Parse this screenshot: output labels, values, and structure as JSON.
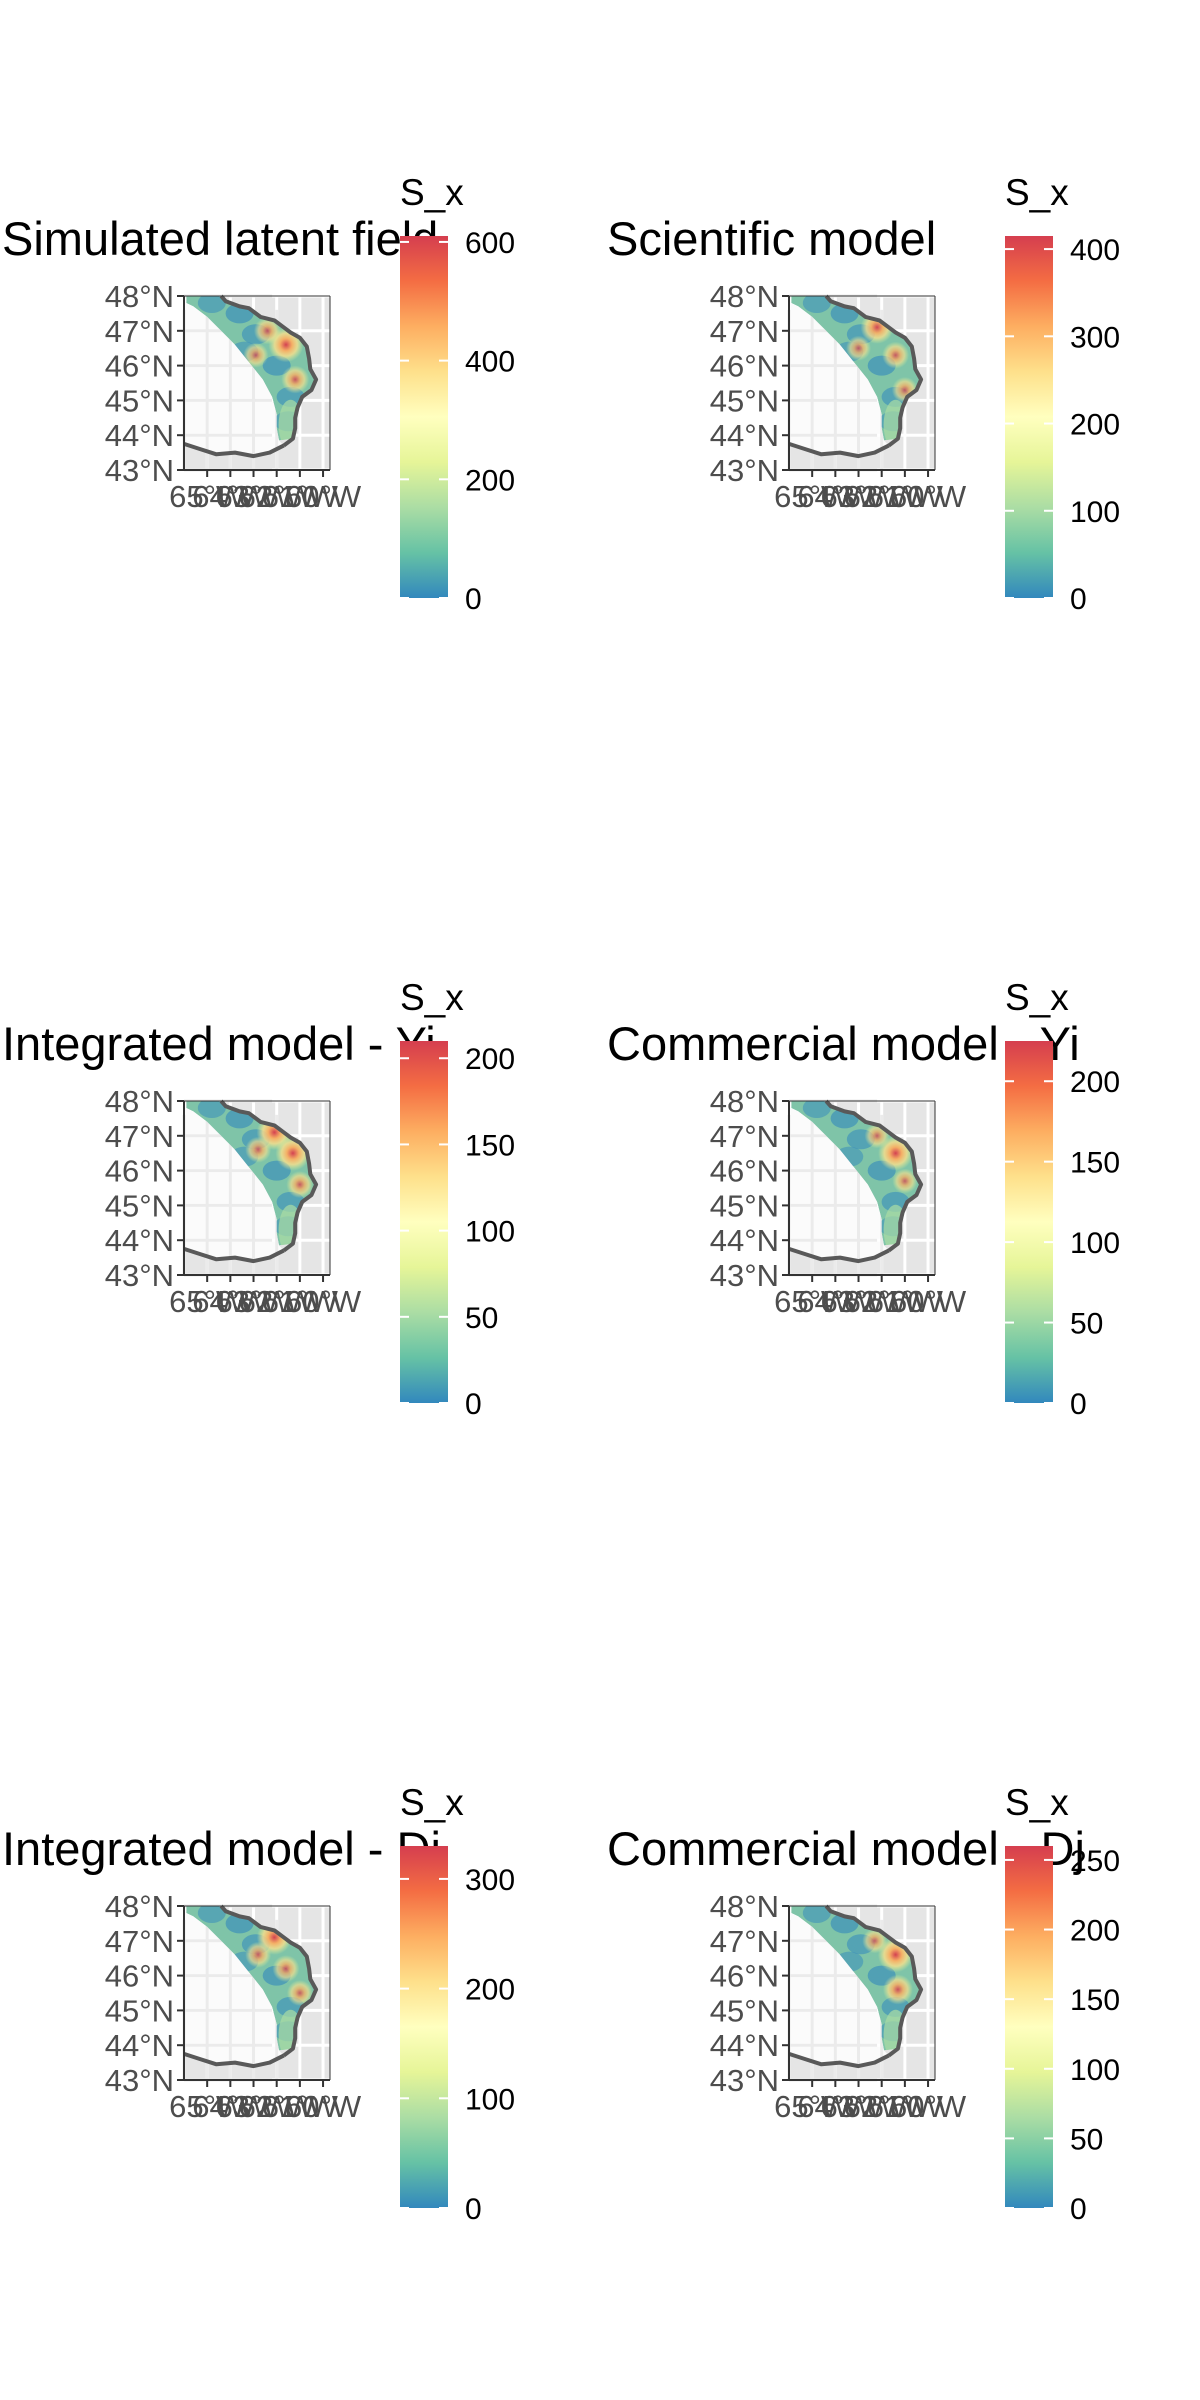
{
  "panels": [
    {
      "id": "simulated",
      "title": "Simulated latent field",
      "legend": {
        "title": "S_x",
        "ticks": [
          "0",
          "200",
          "400",
          "600"
        ],
        "min": 0,
        "max": 610
      },
      "ylabels": [
        "48°N",
        "47°N",
        "46°N",
        "45°N",
        "44°N",
        "43°N"
      ],
      "xlabels": [
        "65°W",
        "64°W",
        "63°W",
        "62°W",
        "61°W",
        "60°W"
      ],
      "hotspots": [
        {
          "lon": -61.6,
          "lat": 46.6,
          "level": 0.95
        },
        {
          "lon": -62.4,
          "lat": 47.0,
          "level": 0.55
        },
        {
          "lon": -61.2,
          "lat": 45.6,
          "level": 0.6
        },
        {
          "lon": -62.9,
          "lat": 46.3,
          "level": 0.45
        }
      ]
    },
    {
      "id": "scientific",
      "title": "Scientific model",
      "legend": {
        "title": "S_x",
        "ticks": [
          "0",
          "100",
          "200",
          "300",
          "400"
        ],
        "min": 0,
        "max": 415
      },
      "ylabels": [
        "48°N",
        "47°N",
        "46°N",
        "45°N",
        "44°N",
        "43°N"
      ],
      "xlabels": [
        "65°W",
        "64°W",
        "63°W",
        "62°W",
        "61°W",
        "60°W"
      ],
      "hotspots": [
        {
          "lon": -62.2,
          "lat": 47.1,
          "level": 0.85
        },
        {
          "lon": -61.4,
          "lat": 46.3,
          "level": 0.55
        },
        {
          "lon": -63.0,
          "lat": 46.5,
          "level": 0.45
        },
        {
          "lon": -61.0,
          "lat": 45.3,
          "level": 0.5
        }
      ]
    },
    {
      "id": "integrated-yi",
      "title": "Integrated model - Yi",
      "legend": {
        "title": "S_x",
        "ticks": [
          "0",
          "50",
          "100",
          "150",
          "200"
        ],
        "min": 0,
        "max": 210
      },
      "ylabels": [
        "48°N",
        "47°N",
        "46°N",
        "45°N",
        "44°N",
        "43°N"
      ],
      "xlabels": [
        "65°W",
        "64°W",
        "63°W",
        "62°W",
        "61°W",
        "60°W"
      ],
      "hotspots": [
        {
          "lon": -62.1,
          "lat": 47.1,
          "level": 0.97
        },
        {
          "lon": -61.3,
          "lat": 46.5,
          "level": 0.95
        },
        {
          "lon": -62.8,
          "lat": 46.6,
          "level": 0.5
        },
        {
          "lon": -61.0,
          "lat": 45.6,
          "level": 0.55
        }
      ]
    },
    {
      "id": "commercial-yi",
      "title": "Commercial model - Yi",
      "legend": {
        "title": "S_x",
        "ticks": [
          "0",
          "50",
          "100",
          "150",
          "200"
        ],
        "min": 0,
        "max": 225
      },
      "ylabels": [
        "48°N",
        "47°N",
        "46°N",
        "45°N",
        "44°N",
        "43°N"
      ],
      "xlabels": [
        "65°W",
        "64°W",
        "63°W",
        "62°W",
        "61°W",
        "60°W"
      ],
      "hotspots": [
        {
          "lon": -61.4,
          "lat": 46.5,
          "level": 0.95
        },
        {
          "lon": -62.2,
          "lat": 47.0,
          "level": 0.45
        },
        {
          "lon": -61.0,
          "lat": 45.7,
          "level": 0.45
        }
      ]
    },
    {
      "id": "integrated-dj",
      "title": "Integrated model - Dj",
      "legend": {
        "title": "S_x",
        "ticks": [
          "0",
          "100",
          "200",
          "300"
        ],
        "min": 0,
        "max": 330
      },
      "ylabels": [
        "48°N",
        "47°N",
        "46°N",
        "45°N",
        "44°N",
        "43°N"
      ],
      "xlabels": [
        "65°W",
        "64°W",
        "63°W",
        "62°W",
        "61°W",
        "60°W"
      ],
      "hotspots": [
        {
          "lon": -62.1,
          "lat": 47.1,
          "level": 0.95
        },
        {
          "lon": -61.6,
          "lat": 46.2,
          "level": 0.55
        },
        {
          "lon": -62.8,
          "lat": 46.6,
          "level": 0.5
        },
        {
          "lon": -61.0,
          "lat": 45.5,
          "level": 0.5
        }
      ]
    },
    {
      "id": "commercial-dj",
      "title": "Commercial model - Dj",
      "legend": {
        "title": "S_x",
        "ticks": [
          "0",
          "50",
          "100",
          "150",
          "200",
          "250"
        ],
        "min": 0,
        "max": 260
      },
      "ylabels": [
        "48°N",
        "47°N",
        "46°N",
        "45°N",
        "44°N",
        "43°N"
      ],
      "xlabels": [
        "65°W",
        "64°W",
        "63°W",
        "62°W",
        "61°W",
        "60°W"
      ],
      "hotspots": [
        {
          "lon": -61.4,
          "lat": 46.6,
          "level": 0.97
        },
        {
          "lon": -61.3,
          "lat": 45.6,
          "level": 0.7
        },
        {
          "lon": -62.3,
          "lat": 47.0,
          "level": 0.45
        }
      ]
    }
  ],
  "colors": {
    "ramp": [
      "#3288bd",
      "#66c2a5",
      "#abdda4",
      "#e6f598",
      "#ffffbf",
      "#fee08b",
      "#fdae61",
      "#f46d43",
      "#d53e4f"
    ],
    "land": "#e5e5e5",
    "coast": "#595959",
    "grid": "#ebebeb",
    "axis": "#333333"
  }
}
